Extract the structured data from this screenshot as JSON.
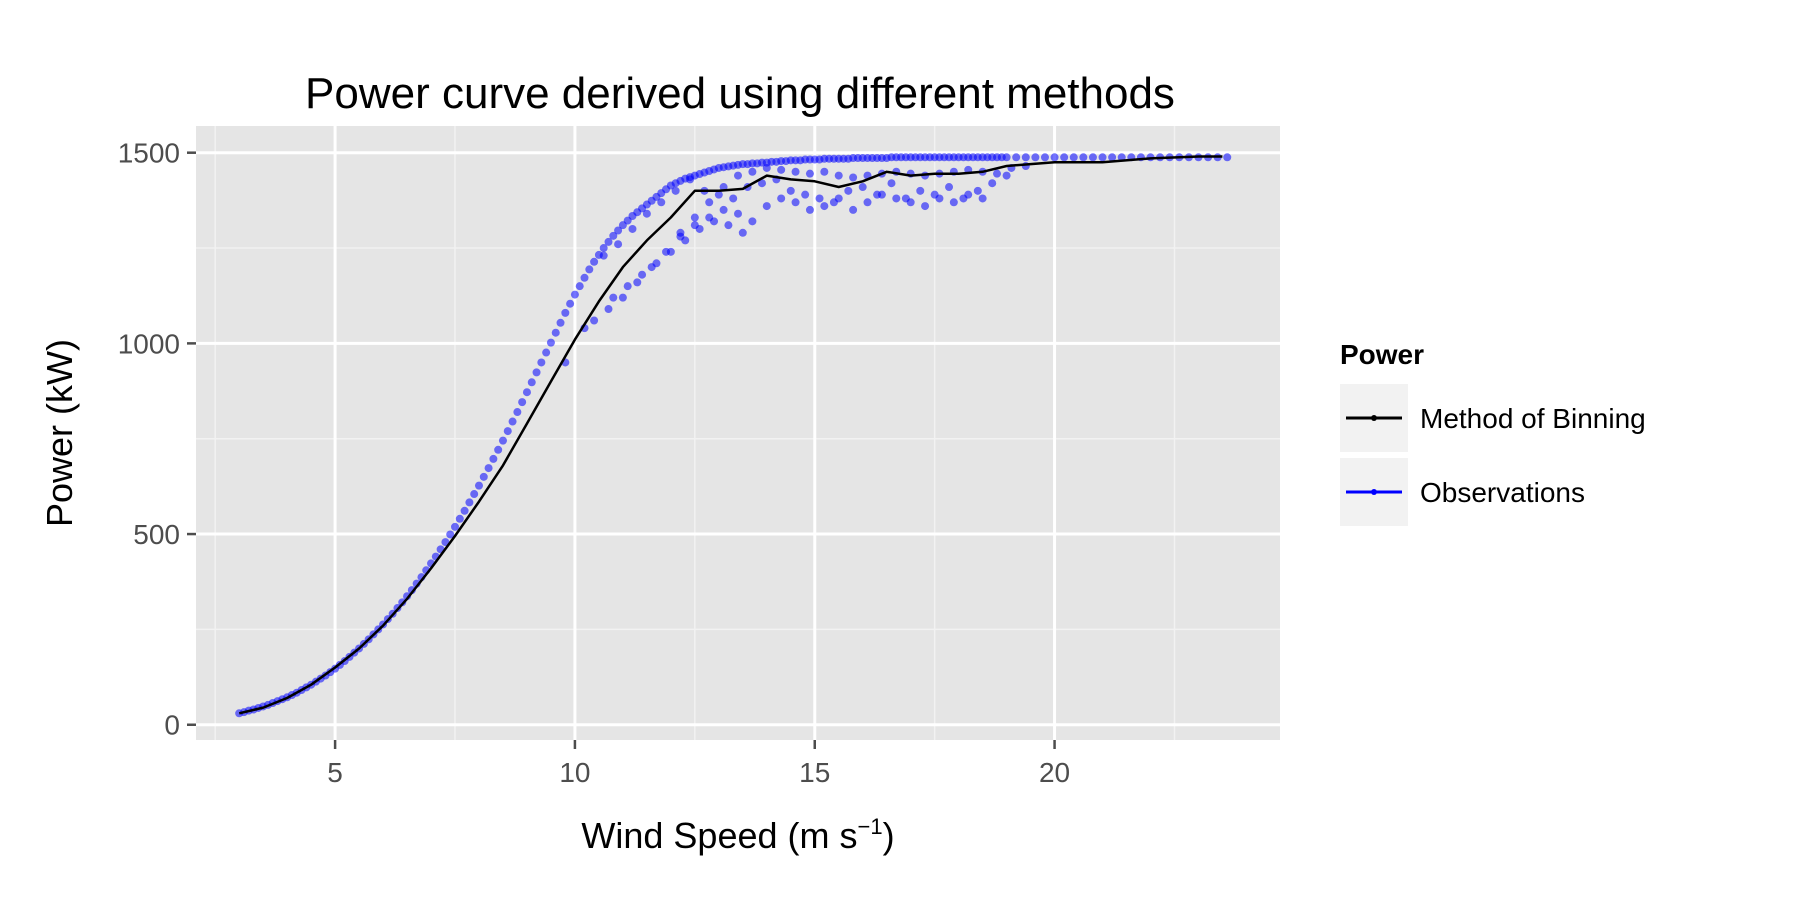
{
  "chart_data": {
    "type": "scatter",
    "title": "Power curve derived using different methods",
    "xlabel": "Wind Speed (m s",
    "xlabel_superscript": "−1",
    "xlabel_suffix": ")",
    "ylabel": "Power (kW)",
    "xlim": [
      2.1,
      24.7
    ],
    "ylim": [
      -40,
      1570
    ],
    "x_ticks": [
      5,
      10,
      15,
      20
    ],
    "y_ticks": [
      0,
      500,
      1000,
      1500
    ],
    "grid": true,
    "legend": {
      "title": "Power",
      "placement": "right",
      "entries": [
        "Method of Binning",
        "Observations"
      ]
    },
    "series": [
      {
        "name": "Method of Binning",
        "kind": "line",
        "color": "#000000",
        "x": [
          3.0,
          3.5,
          4.0,
          4.5,
          5.0,
          5.5,
          6.0,
          6.5,
          7.0,
          7.5,
          8.0,
          8.5,
          9.0,
          9.5,
          10.0,
          10.5,
          11.0,
          11.5,
          12.0,
          12.5,
          13.0,
          13.5,
          14.0,
          14.5,
          15.0,
          15.5,
          16.0,
          16.5,
          17.0,
          17.5,
          18.0,
          18.5,
          19.0,
          19.5,
          20.0,
          21.0,
          22.0,
          23.0,
          23.5
        ],
        "y": [
          30,
          45,
          70,
          105,
          150,
          200,
          260,
          330,
          410,
          495,
          585,
          680,
          790,
          900,
          1010,
          1110,
          1200,
          1270,
          1330,
          1400,
          1400,
          1405,
          1440,
          1430,
          1425,
          1410,
          1425,
          1450,
          1440,
          1445,
          1445,
          1450,
          1465,
          1470,
          1475,
          1475,
          1485,
          1490,
          1490
        ]
      },
      {
        "name": "Observations",
        "kind": "points",
        "color": "#0000ff",
        "x": [
          3.0,
          3.1,
          3.2,
          3.3,
          3.4,
          3.5,
          3.6,
          3.7,
          3.8,
          3.9,
          4.0,
          4.1,
          4.2,
          4.3,
          4.4,
          4.5,
          4.6,
          4.7,
          4.8,
          4.9,
          5.0,
          5.1,
          5.2,
          5.3,
          5.4,
          5.5,
          5.6,
          5.7,
          5.8,
          5.9,
          6.0,
          6.1,
          6.2,
          6.3,
          6.4,
          6.5,
          6.6,
          6.7,
          6.8,
          6.9,
          7.0,
          7.1,
          7.2,
          7.3,
          7.4,
          7.5,
          7.6,
          7.7,
          7.8,
          7.9,
          8.0,
          8.1,
          8.2,
          8.3,
          8.4,
          8.5,
          8.6,
          8.7,
          8.8,
          8.9,
          9.0,
          9.1,
          9.2,
          9.3,
          9.4,
          9.5,
          9.6,
          9.7,
          9.8,
          9.9,
          10.0,
          10.1,
          10.2,
          10.3,
          10.4,
          10.5,
          10.6,
          10.7,
          10.8,
          10.9,
          11.0,
          11.1,
          11.2,
          11.3,
          11.4,
          11.5,
          11.6,
          11.7,
          11.8,
          11.9,
          12.0,
          12.1,
          12.2,
          12.3,
          12.4,
          12.5,
          12.6,
          12.7,
          12.8,
          12.9,
          13.0,
          13.1,
          13.2,
          13.3,
          13.4,
          13.5,
          13.6,
          13.7,
          13.8,
          13.9,
          14.0,
          14.1,
          14.2,
          14.3,
          14.4,
          14.5,
          14.6,
          14.7,
          14.8,
          14.9,
          15.0,
          15.1,
          15.2,
          15.3,
          15.4,
          15.5,
          15.6,
          15.7,
          15.8,
          15.9,
          16.0,
          16.1,
          16.2,
          16.3,
          16.4,
          16.5,
          16.6,
          16.7,
          16.8,
          16.9,
          17.0,
          17.1,
          17.2,
          17.3,
          17.4,
          17.5,
          17.6,
          17.7,
          17.8,
          17.9,
          18.0,
          18.1,
          18.2,
          18.3,
          18.4,
          18.5,
          18.6,
          18.7,
          18.8,
          18.9,
          19.0,
          19.2,
          19.4,
          19.6,
          19.8,
          20.0,
          20.2,
          20.4,
          20.6,
          20.8,
          21.0,
          21.2,
          21.4,
          21.6,
          21.8,
          22.0,
          22.2,
          22.4,
          22.6,
          22.8,
          23.0,
          23.2,
          23.4,
          23.6,
          10.6,
          10.9,
          11.2,
          11.5,
          11.8,
          12.1,
          12.4,
          12.7,
          13.0,
          13.3,
          13.6,
          13.9,
          14.2,
          14.5,
          14.8,
          15.1,
          15.4,
          15.7,
          16.0,
          16.3,
          16.6,
          16.9,
          17.2,
          17.5,
          17.8,
          18.1,
          18.4,
          18.7,
          19.0,
          12.2,
          12.5,
          12.8,
          13.1,
          13.4,
          13.7,
          14.0,
          14.3,
          14.6,
          14.9,
          15.2,
          15.5,
          15.8,
          16.1,
          16.4,
          16.7,
          17.0,
          17.3,
          17.6,
          17.9,
          18.2,
          18.5,
          10.8,
          11.1,
          11.4,
          11.7,
          12.0,
          12.3,
          12.6,
          12.9,
          13.2,
          13.5,
          9.8,
          10.2,
          10.4,
          10.7,
          11.0,
          11.3,
          11.6,
          11.9,
          12.2,
          12.5,
          12.8,
          13.1,
          13.4,
          13.7,
          14.0,
          14.3,
          14.6,
          14.9,
          15.2,
          15.5,
          15.8,
          16.1,
          16.4,
          16.7,
          17.0,
          17.3,
          17.6,
          17.9,
          18.2,
          18.5,
          18.8,
          19.1,
          19.4
        ],
        "y": [
          30,
          33,
          37,
          40,
          44,
          48,
          52,
          57,
          62,
          67,
          72,
          78,
          84,
          91,
          98,
          105,
          113,
          121,
          129,
          138,
          147,
          157,
          167,
          178,
          189,
          200,
          212,
          224,
          237,
          250,
          263,
          277,
          291,
          306,
          321,
          337,
          353,
          370,
          387,
          405,
          423,
          441,
          460,
          479,
          499,
          519,
          540,
          561,
          583,
          605,
          627,
          650,
          673,
          697,
          721,
          745,
          770,
          795,
          820,
          846,
          872,
          898,
          924,
          950,
          976,
          1002,
          1028,
          1054,
          1080,
          1104,
          1128,
          1150,
          1172,
          1194,
          1214,
          1232,
          1250,
          1266,
          1282,
          1296,
          1310,
          1322,
          1334,
          1344,
          1354,
          1364,
          1374,
          1384,
          1394,
          1404,
          1414,
          1420,
          1426,
          1432,
          1436,
          1440,
          1444,
          1448,
          1452,
          1456,
          1460,
          1462,
          1464,
          1466,
          1468,
          1470,
          1470,
          1472,
          1472,
          1474,
          1474,
          1476,
          1476,
          1478,
          1478,
          1480,
          1480,
          1480,
          1482,
          1482,
          1482,
          1482,
          1484,
          1484,
          1484,
          1484,
          1484,
          1484,
          1486,
          1486,
          1486,
          1486,
          1486,
          1486,
          1486,
          1486,
          1488,
          1488,
          1488,
          1488,
          1488,
          1488,
          1488,
          1488,
          1488,
          1488,
          1488,
          1488,
          1488,
          1488,
          1488,
          1488,
          1488,
          1488,
          1488,
          1488,
          1488,
          1488,
          1488,
          1488,
          1488,
          1488,
          1488,
          1488,
          1488,
          1488,
          1488,
          1488,
          1488,
          1488,
          1488,
          1488,
          1488,
          1488,
          1488,
          1488,
          1488,
          1488,
          1488,
          1488,
          1488,
          1488,
          1488,
          1488,
          1230,
          1260,
          1300,
          1340,
          1370,
          1400,
          1430,
          1400,
          1390,
          1380,
          1410,
          1420,
          1430,
          1400,
          1390,
          1380,
          1370,
          1400,
          1410,
          1390,
          1420,
          1380,
          1400,
          1390,
          1410,
          1380,
          1400,
          1420,
          1440,
          1280,
          1310,
          1330,
          1350,
          1340,
          1320,
          1360,
          1380,
          1370,
          1350,
          1360,
          1380,
          1350,
          1370,
          1390,
          1380,
          1370,
          1360,
          1380,
          1370,
          1390,
          1380,
          1120,
          1150,
          1180,
          1210,
          1240,
          1270,
          1300,
          1320,
          1310,
          1290,
          950,
          1040,
          1060,
          1090,
          1120,
          1160,
          1200,
          1240,
          1290,
          1330,
          1370,
          1410,
          1440,
          1450,
          1460,
          1455,
          1450,
          1445,
          1450,
          1440,
          1435,
          1440,
          1445,
          1450,
          1445,
          1440,
          1445,
          1450,
          1455,
          1450,
          1445,
          1460,
          1465
        ]
      }
    ]
  }
}
